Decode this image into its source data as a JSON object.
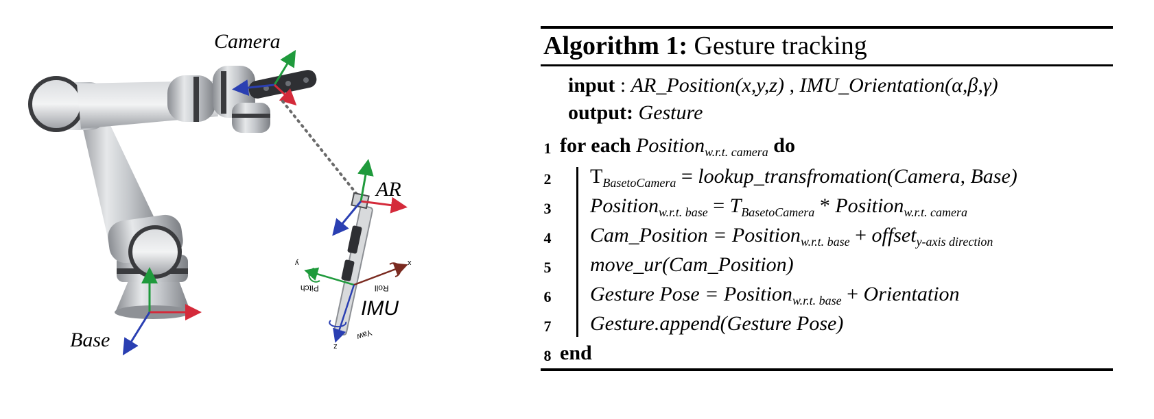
{
  "figure": {
    "labels": {
      "camera": "Camera",
      "base": "Base",
      "ar": "AR",
      "imu": "IMU"
    },
    "imu_axes": {
      "x": "x",
      "y": "y",
      "z": "z",
      "roll": "Roll",
      "pitch": "Pitch",
      "yaw": "Yaw"
    },
    "axis_colors": {
      "x": "#d42a3a",
      "y": "#1f9a3c",
      "z": "#2a3fb2"
    }
  },
  "algorithm": {
    "heading": "Algorithm 1:",
    "title": "Gesture tracking",
    "input_kw": "input",
    "input_sep": " : ",
    "input_value": "AR_Position(x,y,z) , IMU_Orientation(α,β,γ)",
    "output_kw": "output:",
    "output_value": "Gesture",
    "lines": [
      {
        "no": "1",
        "parts": [
          {
            "t": "for each ",
            "c": "kw"
          },
          {
            "t": "Position",
            "c": "it"
          },
          {
            "t": "w.r.t. camera",
            "c": "sub"
          },
          {
            "t": " do",
            "c": "kw"
          }
        ]
      },
      {
        "no": "2",
        "parts": [
          {
            "t": "T",
            "c": ""
          },
          {
            "t": "BasetoCamera",
            "c": "sub"
          },
          {
            "t": " = ",
            "c": ""
          },
          {
            "t": "lookup_transfromation(Camera, Base)",
            "c": "it"
          }
        ]
      },
      {
        "no": "3",
        "parts": [
          {
            "t": "Position",
            "c": "it"
          },
          {
            "t": "w.r.t. base",
            "c": "sub"
          },
          {
            "t": " = ",
            "c": ""
          },
          {
            "t": "T",
            "c": "it"
          },
          {
            "t": "BasetoCamera",
            "c": "sub"
          },
          {
            "t": " * ",
            "c": ""
          },
          {
            "t": "Position",
            "c": "it"
          },
          {
            "t": "w.r.t. camera",
            "c": "sub"
          }
        ]
      },
      {
        "no": "4",
        "parts": [
          {
            "t": "Cam_Position = Position",
            "c": "it"
          },
          {
            "t": "w.r.t. base",
            "c": "sub"
          },
          {
            "t": " + ",
            "c": ""
          },
          {
            "t": "offset",
            "c": "it"
          },
          {
            "t": "y-axis direction",
            "c": "sub"
          }
        ]
      },
      {
        "no": "5",
        "parts": [
          {
            "t": "move_ur(Cam_Position)",
            "c": "it"
          }
        ]
      },
      {
        "no": "6",
        "parts": [
          {
            "t": "Gesture Pose = Position",
            "c": "it"
          },
          {
            "t": "w.r.t. base",
            "c": "sub"
          },
          {
            "t": " + ",
            "c": ""
          },
          {
            "t": "Orientation",
            "c": "it"
          }
        ]
      },
      {
        "no": "7",
        "parts": [
          {
            "t": "Gesture.append(Gesture Pose)",
            "c": "it"
          }
        ]
      },
      {
        "no": "8",
        "parts": [
          {
            "t": "end",
            "c": "kw"
          }
        ]
      }
    ]
  }
}
